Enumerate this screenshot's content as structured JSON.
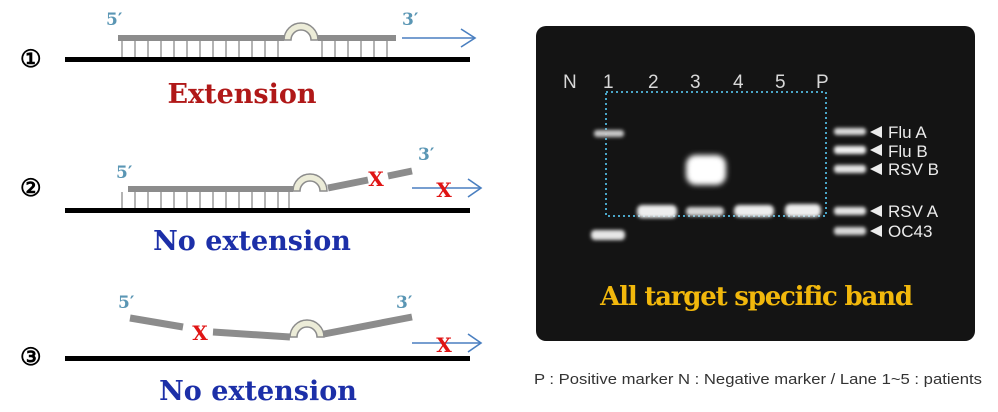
{
  "left_panel": {
    "scenarios": [
      {
        "number": "①",
        "prime5": "5′",
        "prime3": "3′",
        "outcome": "Extension",
        "outcome_color": "#b01818",
        "mismatch_mark": ""
      },
      {
        "number": "②",
        "prime5": "5′",
        "prime3": "3′",
        "outcome": "No extension",
        "outcome_color": "#1c2fa8",
        "mismatch_mark": "X"
      },
      {
        "number": "③",
        "prime5": "5′",
        "prime3": "3′",
        "outcome": "No extension",
        "outcome_color": "#1c2fa8",
        "mismatch_mark": "X"
      }
    ],
    "colors": {
      "template": "#000000",
      "primer": "#8c8c8c",
      "prime_label": "#5a96b4",
      "arrow": "#4a7fc0",
      "mismatch": "#e01414"
    }
  },
  "gel": {
    "lanes": [
      "N",
      "1",
      "2",
      "3",
      "4",
      "5",
      "P"
    ],
    "markers": [
      "Flu A",
      "Flu B",
      "RSV B",
      "RSV A",
      "OC43"
    ],
    "overlay_label": "All target specific band",
    "overlay_color": "#f2b80c",
    "box_color": "#4aa6c8",
    "background": "#141414"
  },
  "caption": "P : Positive marker  N : Negative marker  /  Lane 1~5 : patients"
}
